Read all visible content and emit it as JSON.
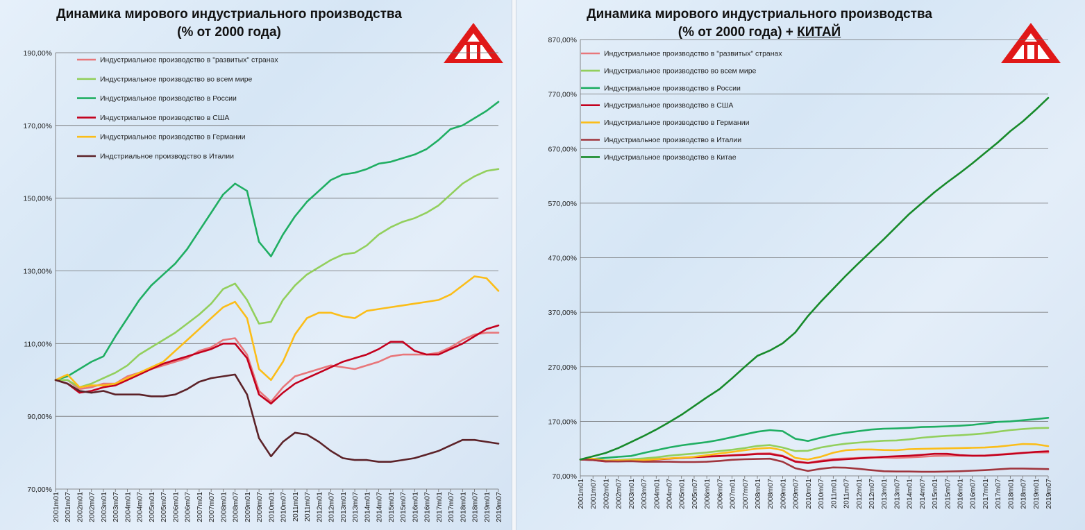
{
  "left_chart": {
    "title_line1": "Динамика мирового индустриального производства",
    "title_line2": "(% от 2000 года)"
  },
  "right_chart": {
    "title_line1": "Динамика мирового индустриального производства",
    "title_line2_prefix": "(% от 2000 года) + ",
    "title_line2_china": "КИТАЙ"
  },
  "logo_icon": "red-triangle-logo",
  "chart_data": [
    {
      "type": "line",
      "title": "Динамика мирового индустриального производства (% от 2000 года)",
      "ylim": [
        70,
        190
      ],
      "y_ticks": [
        "190,00%",
        "170,00%",
        "150,00%",
        "130,00%",
        "110,00%",
        "90,00%",
        "70,00%"
      ],
      "x_ticks": [
        "2001m01",
        "2001m07",
        "2002m01",
        "2002m07",
        "2003m01",
        "2003m07",
        "2004m01",
        "2004m07",
        "2005m01",
        "2005m07",
        "2006m01",
        "2006m07",
        "2007m01",
        "2007m07",
        "2008m01",
        "2008m07",
        "2009m01",
        "2009m07",
        "2010m01",
        "2010m07",
        "2011m01",
        "2011m07",
        "2012m01",
        "2012m07",
        "2013m01",
        "2013m07",
        "2014m01",
        "2014m07",
        "2015m01",
        "2015m07",
        "2016m01",
        "2016m07",
        "2017m01",
        "2017m07",
        "2018m01",
        "2018m07",
        "2019m01",
        "2019m07"
      ],
      "grid": true,
      "legend": "top-left",
      "series": [
        {
          "name": "Индустриальное производство в \"развитых\" странах",
          "color": "#e8767a",
          "values": [
            100,
            100,
            97.5,
            98,
            99,
            99,
            101,
            102,
            103,
            104,
            105,
            106,
            108,
            109,
            111,
            111.5,
            107,
            97,
            94,
            98,
            101,
            102,
            103,
            104,
            103.5,
            103,
            104,
            105,
            106.5,
            107,
            107,
            107,
            107.5,
            109,
            111,
            112.5,
            113,
            113
          ]
        },
        {
          "name": "Индустриальное производство во всем мире",
          "color": "#92cf5c",
          "values": [
            100,
            100,
            98,
            99,
            100.5,
            102,
            104,
            107,
            109,
            111,
            113,
            115.5,
            118,
            121,
            125,
            126.5,
            122,
            115.5,
            116,
            122,
            126,
            129,
            131,
            133,
            134.5,
            135,
            137,
            140,
            142,
            143.5,
            144.5,
            146,
            148,
            151,
            154,
            156,
            157.5,
            158
          ]
        },
        {
          "name": "Индустриальное производство в России",
          "color": "#1fae62",
          "values": [
            100,
            101,
            103,
            105,
            106.5,
            112,
            117,
            122,
            126,
            129,
            132,
            136,
            141,
            146,
            151,
            154,
            152,
            138,
            134,
            140,
            145,
            149,
            152,
            155,
            156.5,
            157,
            158,
            159.5,
            160,
            161,
            162,
            163.5,
            166,
            169,
            170,
            172,
            174,
            176.5
          ]
        },
        {
          "name": "Индустриальное производство в США",
          "color": "#c3001d",
          "values": [
            100,
            99,
            96.5,
            97,
            98,
            98.5,
            100,
            101.5,
            103,
            104.5,
            105.5,
            106.5,
            107.5,
            108.5,
            110,
            110,
            106,
            96,
            93.5,
            96.5,
            99,
            100.5,
            102,
            103.5,
            105,
            106,
            107,
            108.5,
            110.5,
            110.5,
            108,
            107,
            107,
            108.5,
            110,
            112,
            114,
            115
          ]
        },
        {
          "name": "Индустриальное производство в Германии",
          "color": "#fbbd18",
          "values": [
            100,
            101.5,
            98,
            98.5,
            98.5,
            99,
            100.5,
            102,
            103.5,
            105,
            108,
            111,
            114,
            117,
            120,
            121.5,
            117,
            103,
            100,
            105,
            112.5,
            117,
            118.5,
            118.5,
            117.5,
            117,
            119,
            119.5,
            120,
            120.5,
            121,
            121.5,
            122,
            123.5,
            126,
            128.5,
            128,
            124.5
          ]
        },
        {
          "name": "Индстриальное производство в Италии",
          "color": "#5c2228",
          "values": [
            100,
            99,
            97,
            96.5,
            97,
            96,
            96,
            96,
            95.5,
            95.5,
            96,
            97.5,
            99.5,
            100.5,
            101,
            101.5,
            96,
            84,
            79,
            83,
            85.5,
            85,
            83,
            80.5,
            78.5,
            78,
            78,
            77.5,
            77.5,
            78,
            78.5,
            79.5,
            80.5,
            82,
            83.5,
            83.5,
            83,
            82.5
          ]
        }
      ]
    },
    {
      "type": "line",
      "title": "Динамика мирового индустриального производства (% от 2000 года) + КИТАЙ",
      "ylim": [
        70,
        870
      ],
      "y_ticks": [
        "870,00%",
        "770,00%",
        "670,00%",
        "570,00%",
        "470,00%",
        "370,00%",
        "270,00%",
        "170,00%",
        "70,00%"
      ],
      "x_ticks": [
        "2001m01",
        "2001m07",
        "2002m01",
        "2002m07",
        "2003m01",
        "2003m07",
        "2004m01",
        "2004m07",
        "2005m01",
        "2005m07",
        "2006m01",
        "2006m07",
        "2007m01",
        "2007m07",
        "2008m01",
        "2008m07",
        "2009m01",
        "2009m07",
        "2010m01",
        "2010m07",
        "2011m01",
        "2011m07",
        "2012m01",
        "2012m07",
        "2013m01",
        "2013m07",
        "2014m01",
        "2014m07",
        "2015m01",
        "2015m07",
        "2016m01",
        "2016m07",
        "2017m01",
        "2017m07",
        "2018m01",
        "2018m07",
        "2019m01",
        "2019m07"
      ],
      "grid": true,
      "legend": "top-left",
      "series": [
        {
          "name": "Индустриальное производство в \"развитых\" странах",
          "color": "#e8767a",
          "values": [
            100,
            100,
            97.5,
            98,
            99,
            99,
            101,
            102,
            103,
            104,
            105,
            106,
            108,
            109,
            111,
            111.5,
            107,
            97,
            94,
            98,
            101,
            102,
            103,
            104,
            103.5,
            103,
            104,
            105,
            106.5,
            107,
            107,
            107,
            107.5,
            109,
            111,
            112.5,
            113,
            113
          ]
        },
        {
          "name": "Индустриальное производство во всем мире",
          "color": "#92cf5c",
          "values": [
            100,
            100,
            98,
            99,
            100.5,
            102,
            104,
            107,
            109,
            111,
            113,
            115.5,
            118,
            121,
            125,
            126.5,
            122,
            115.5,
            116,
            122,
            126,
            129,
            131,
            133,
            134.5,
            135,
            137,
            140,
            142,
            143.5,
            144.5,
            146,
            148,
            151,
            154,
            156,
            157.5,
            158
          ]
        },
        {
          "name": "Индустриальное производство в России",
          "color": "#1fae62",
          "values": [
            100,
            101,
            103,
            105,
            106.5,
            112,
            117,
            122,
            126,
            129,
            132,
            136,
            141,
            146,
            151,
            154,
            152,
            138,
            134,
            140,
            145,
            149,
            152,
            155,
            156.5,
            157,
            158,
            159.5,
            160,
            161,
            162,
            163.5,
            166,
            169,
            170,
            172,
            174,
            176.5
          ]
        },
        {
          "name": "Индустриальное производство в США",
          "color": "#c3001d",
          "values": [
            100,
            99,
            96.5,
            97,
            98,
            98.5,
            100,
            101.5,
            103,
            104.5,
            105.5,
            106.5,
            107.5,
            108.5,
            110,
            110,
            106,
            96,
            93.5,
            96.5,
            99,
            100.5,
            102,
            103.5,
            105,
            106,
            107,
            108.5,
            110.5,
            110.5,
            108,
            107,
            107,
            108.5,
            110,
            112,
            114,
            115
          ]
        },
        {
          "name": "Индустриальное производство в Германии",
          "color": "#fbbd18",
          "values": [
            100,
            101.5,
            98,
            98.5,
            98.5,
            99,
            100.5,
            102,
            103.5,
            105,
            108,
            111,
            114,
            117,
            120,
            121.5,
            117,
            103,
            100,
            105,
            112.5,
            117,
            118.5,
            118.5,
            117.5,
            117,
            119,
            119.5,
            120,
            120.5,
            121,
            121.5,
            122,
            123.5,
            126,
            128.5,
            128,
            124.5
          ]
        },
        {
          "name": "Индустриальное производство в Италии",
          "color": "#a0353d",
          "values": [
            100,
            99,
            97,
            96.5,
            97,
            96,
            96,
            96,
            95.5,
            95.5,
            96,
            97.5,
            99.5,
            100.5,
            101,
            101.5,
            96,
            84,
            79,
            83,
            85.5,
            85,
            83,
            80.5,
            78.5,
            78,
            78,
            77.5,
            77.5,
            78,
            78.5,
            79.5,
            80.5,
            82,
            83.5,
            83.5,
            83,
            82.5
          ]
        },
        {
          "name": "Индустриальное производство в Китае",
          "color": "#178a2a",
          "values": [
            100,
            106,
            112,
            121,
            132,
            143,
            155,
            168,
            182,
            198,
            214,
            229,
            249,
            270,
            290,
            300,
            313,
            333,
            363,
            389,
            413,
            437,
            460,
            482,
            504,
            527,
            550,
            570,
            590,
            608,
            625,
            643,
            662,
            681,
            702,
            720,
            741,
            763
          ]
        }
      ]
    }
  ]
}
